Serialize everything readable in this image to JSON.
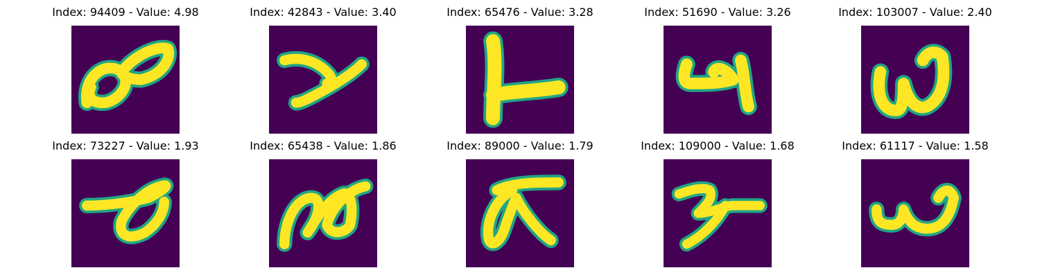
{
  "colors": {
    "background": "#440154",
    "mid": "#21a585",
    "stroke": "#fde725"
  },
  "panels": [
    {
      "label": "Index: 94409 - Value: 4.98",
      "glyph": "infinity-shape"
    },
    {
      "label": "Index: 42843 - Value: 3.40",
      "glyph": "y-like-shape"
    },
    {
      "label": "Index: 65476 - Value: 3.28",
      "glyph": "inverted-t-shape"
    },
    {
      "label": "Index: 51690 - Value: 3.26",
      "glyph": "four-like-shape"
    },
    {
      "label": "Index: 103007 - Value: 2.40",
      "glyph": "w-like-shape"
    },
    {
      "label": "Index: 73227 - Value: 1.93",
      "glyph": "loop-shape"
    },
    {
      "label": "Index: 65438 - Value: 1.86",
      "glyph": "double-loop-shape"
    },
    {
      "label": "Index: 89000 - Value: 1.79",
      "glyph": "pi-like-shape"
    },
    {
      "label": "Index: 109000 - Value: 1.68",
      "glyph": "curl-shape"
    },
    {
      "label": "Index: 61117 - Value: 1.58",
      "glyph": "w-like-shape"
    }
  ]
}
